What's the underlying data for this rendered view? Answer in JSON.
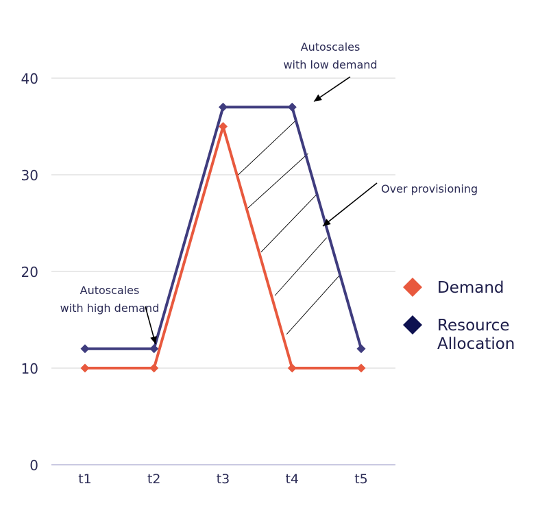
{
  "chart_data": {
    "type": "line",
    "categories": [
      "t1",
      "t2",
      "t3",
      "t4",
      "t5"
    ],
    "series": [
      {
        "name": "Demand",
        "values": [
          10,
          10,
          35,
          10,
          10
        ],
        "color": "#E8593E",
        "marker": "diamond"
      },
      {
        "name": "Resource Allocation",
        "values": [
          12,
          12,
          37,
          37,
          12
        ],
        "color": "#3F3C7E",
        "marker": "diamond"
      }
    ],
    "legend": {
      "placement": "right",
      "items": [
        {
          "label": "Demand",
          "color": "#E8593E"
        },
        {
          "label_lines": [
            "Resource",
            "Allocation"
          ],
          "color": "#0E1150"
        }
      ]
    },
    "yticks": [
      0,
      10,
      20,
      30,
      40
    ],
    "ylim": [
      0,
      40
    ],
    "grid": true,
    "annotations": [
      {
        "label_lines": [
          "Autoscales",
          "with high demand"
        ],
        "points_to": {
          "x": "t2",
          "y": 12
        }
      },
      {
        "label_lines": [
          "Autoscales",
          "with low demand"
        ],
        "points_to": {
          "x": "t4",
          "y": 37
        }
      },
      {
        "label_lines": [
          "Over provisioning"
        ],
        "points_to": {
          "region": "between Resource Allocation and Demand from t3 to t5"
        }
      }
    ],
    "colors": {
      "grid": "#d3d3d3",
      "axis": "#b8b7d9",
      "tick_text": "#2b2b55",
      "annotation_text": "#2b2b55",
      "hatch": "#000000"
    }
  }
}
